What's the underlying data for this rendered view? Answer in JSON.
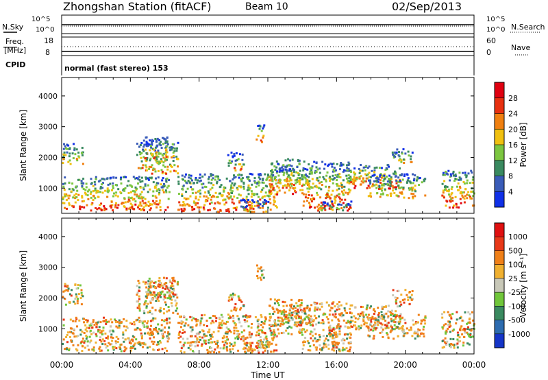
{
  "header": {
    "station": "Zhongshan Station (fitACF)",
    "beam": "Beam 10",
    "date": "02/Sep/2013"
  },
  "summary_panels": {
    "nsky_label": "N.Sky",
    "nsearch_label": "N.Search",
    "nsky_ticks": [
      "10^5",
      "10^0"
    ],
    "nsearch_ticks": [
      "10^5",
      "10^0"
    ],
    "freq_label_1": "Freq.",
    "freq_label_2": "[MHz]",
    "freq_ticks": [
      "18",
      "8"
    ],
    "nave_label": "Nave",
    "nave_ticks": [
      "60",
      "0"
    ],
    "cpid_label": "CPID",
    "cpid_text": "normal (fast stereo) 153"
  },
  "chart_data": [
    {
      "type": "heatmap",
      "name": "power",
      "ylabel": "Slant Range [km]",
      "xlabel": "",
      "yticks": [
        "1000",
        "2000",
        "3000",
        "4000"
      ],
      "ylim": [
        180,
        4600
      ],
      "colorbar": {
        "label": "Power [dB]",
        "ticks": [
          "4",
          "8",
          "12",
          "16",
          "20",
          "24",
          "28"
        ],
        "colors": [
          "#1030e8",
          "#3a5cb8",
          "#3a8a60",
          "#7cc640",
          "#f0c010",
          "#f08010",
          "#e83010",
          "#e00010"
        ]
      }
    },
    {
      "type": "heatmap",
      "name": "velocity",
      "ylabel": "Slant Range [km]",
      "xlabel": "Time UT",
      "yticks": [
        "1000",
        "2000",
        "3000",
        "4000"
      ],
      "xticks": [
        "00:00",
        "04:00",
        "08:00",
        "12:00",
        "16:00",
        "20:00",
        "00:00"
      ],
      "ylim": [
        180,
        4600
      ],
      "colorbar": {
        "label": "Velocity [m s⁻¹]",
        "ticks": [
          "1000",
          "500",
          "100",
          "25",
          "-25",
          "-100",
          "-500",
          "-1000"
        ],
        "colors": [
          "#1535c8",
          "#2d6cb0",
          "#3a8a60",
          "#70c63a",
          "#c8c8b8",
          "#f0b030",
          "#f08018",
          "#e83818",
          "#e01010"
        ]
      }
    }
  ]
}
